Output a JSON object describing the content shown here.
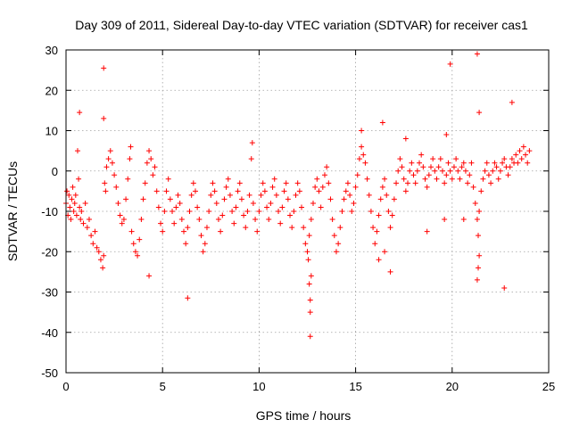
{
  "chart_data": {
    "type": "scatter",
    "title": "Day 309 of 2011, Sidereal Day-to-day VTEC variation (SDTVAR) for receiver cas1",
    "xlabel": "GPS time / hours",
    "ylabel": "SDTVAR / TECUs",
    "xlim": [
      0,
      25
    ],
    "ylim": [
      -50,
      30
    ],
    "xticks": [
      0,
      5,
      10,
      15,
      20,
      25
    ],
    "yticks": [
      -50,
      -40,
      -30,
      -20,
      -10,
      0,
      10,
      20,
      30
    ],
    "xtick_labels": [
      "0",
      "5",
      "10",
      "15",
      "20",
      "25"
    ],
    "ytick_labels": [
      "-50",
      "-40",
      "-30",
      "-20",
      "-10",
      "0",
      "10",
      "20",
      "30"
    ],
    "grid": true,
    "marker": "+",
    "color": "#ff0000",
    "series": [
      {
        "name": "cas1 SDTVAR",
        "points": [
          [
            0.0,
            -8
          ],
          [
            0.05,
            -5
          ],
          [
            0.1,
            -11
          ],
          [
            0.15,
            -6
          ],
          [
            0.2,
            -9
          ],
          [
            0.25,
            -12
          ],
          [
            0.3,
            -7
          ],
          [
            0.35,
            -4
          ],
          [
            0.4,
            -10
          ],
          [
            0.45,
            -8
          ],
          [
            0.5,
            -6
          ],
          [
            0.55,
            -11
          ],
          [
            0.6,
            5
          ],
          [
            0.65,
            -2
          ],
          [
            0.7,
            -9
          ],
          [
            0.75,
            -12
          ],
          [
            0.8,
            -10
          ],
          [
            0.9,
            -13
          ],
          [
            1.0,
            -8
          ],
          [
            1.1,
            -14
          ],
          [
            1.2,
            -12
          ],
          [
            1.3,
            -16
          ],
          [
            1.4,
            -18
          ],
          [
            1.5,
            -15
          ],
          [
            1.6,
            -19
          ],
          [
            1.7,
            -20
          ],
          [
            1.8,
            -22
          ],
          [
            1.9,
            -24
          ],
          [
            1.95,
            -21
          ],
          [
            2.0,
            -3
          ],
          [
            2.05,
            -5
          ],
          [
            2.1,
            1
          ],
          [
            2.2,
            3
          ],
          [
            2.3,
            5
          ],
          [
            2.4,
            2
          ],
          [
            2.5,
            -1
          ],
          [
            2.6,
            -4
          ],
          [
            2.7,
            -8
          ],
          [
            2.8,
            -11
          ],
          [
            2.9,
            -13
          ],
          [
            3.0,
            -12
          ],
          [
            3.1,
            -7
          ],
          [
            3.2,
            -2
          ],
          [
            3.3,
            3
          ],
          [
            3.35,
            6
          ],
          [
            3.4,
            -15
          ],
          [
            3.5,
            -18
          ],
          [
            3.6,
            -20
          ],
          [
            3.7,
            -21
          ],
          [
            3.8,
            -17
          ],
          [
            3.9,
            -12
          ],
          [
            4.0,
            -7
          ],
          [
            4.1,
            -3
          ],
          [
            4.2,
            2
          ],
          [
            4.3,
            5
          ],
          [
            4.4,
            3
          ],
          [
            4.5,
            -1
          ],
          [
            4.6,
            1
          ],
          [
            4.7,
            -5
          ],
          [
            4.8,
            -9
          ],
          [
            4.9,
            -13
          ],
          [
            5.0,
            -15
          ],
          [
            5.1,
            -10
          ],
          [
            5.2,
            -5
          ],
          [
            5.3,
            -2
          ],
          [
            5.4,
            -7
          ],
          [
            5.5,
            -10
          ],
          [
            5.6,
            -13
          ],
          [
            5.7,
            -9
          ],
          [
            5.8,
            -6
          ],
          [
            5.9,
            -8
          ],
          [
            6.0,
            -12
          ],
          [
            6.1,
            -15
          ],
          [
            6.2,
            -18
          ],
          [
            6.3,
            -14
          ],
          [
            6.4,
            -10
          ],
          [
            6.5,
            -6
          ],
          [
            6.6,
            -3
          ],
          [
            6.7,
            -5
          ],
          [
            6.8,
            -9
          ],
          [
            6.9,
            -12
          ],
          [
            7.0,
            -16
          ],
          [
            7.1,
            -20
          ],
          [
            7.2,
            -18
          ],
          [
            7.3,
            -14
          ],
          [
            7.4,
            -10
          ],
          [
            7.5,
            -6
          ],
          [
            7.6,
            -3
          ],
          [
            7.7,
            -5
          ],
          [
            7.8,
            -8
          ],
          [
            7.9,
            -12
          ],
          [
            8.0,
            -15
          ],
          [
            8.1,
            -11
          ],
          [
            8.2,
            -7
          ],
          [
            8.3,
            -4
          ],
          [
            8.4,
            -2
          ],
          [
            8.5,
            -6
          ],
          [
            8.6,
            -10
          ],
          [
            8.7,
            -13
          ],
          [
            8.8,
            -9
          ],
          [
            8.9,
            -5
          ],
          [
            9.0,
            -3
          ],
          [
            9.1,
            -7
          ],
          [
            9.2,
            -11
          ],
          [
            9.3,
            -14
          ],
          [
            9.4,
            -10
          ],
          [
            9.5,
            -6
          ],
          [
            9.6,
            3
          ],
          [
            9.65,
            7
          ],
          [
            9.7,
            -8
          ],
          [
            9.8,
            -12
          ],
          [
            9.9,
            -15
          ],
          [
            10.0,
            -10
          ],
          [
            10.1,
            -6
          ],
          [
            10.2,
            -3
          ],
          [
            10.3,
            -5
          ],
          [
            10.4,
            -9
          ],
          [
            10.5,
            -12
          ],
          [
            10.6,
            -8
          ],
          [
            10.7,
            -4
          ],
          [
            10.8,
            -2
          ],
          [
            10.9,
            -6
          ],
          [
            11.0,
            -10
          ],
          [
            11.1,
            -13
          ],
          [
            11.2,
            -9
          ],
          [
            11.3,
            -5
          ],
          [
            11.4,
            -3
          ],
          [
            11.5,
            -7
          ],
          [
            11.6,
            -11
          ],
          [
            11.7,
            -14
          ],
          [
            11.8,
            -10
          ],
          [
            11.9,
            -6
          ],
          [
            12.0,
            -3
          ],
          [
            12.1,
            -5
          ],
          [
            12.2,
            -9
          ],
          [
            12.3,
            -14
          ],
          [
            12.4,
            -18
          ],
          [
            12.5,
            -20
          ],
          [
            12.55,
            -22
          ],
          [
            12.6,
            -16
          ],
          [
            12.7,
            -12
          ],
          [
            12.8,
            -8
          ],
          [
            12.9,
            -4
          ],
          [
            13.0,
            -2
          ],
          [
            13.1,
            -5
          ],
          [
            13.2,
            -9
          ],
          [
            13.3,
            -4
          ],
          [
            13.4,
            -1
          ],
          [
            13.5,
            1
          ],
          [
            13.6,
            -3
          ],
          [
            13.7,
            -7
          ],
          [
            13.8,
            -12
          ],
          [
            13.9,
            -16
          ],
          [
            14.0,
            -20
          ],
          [
            14.1,
            -18
          ],
          [
            14.2,
            -14
          ],
          [
            14.3,
            -10
          ],
          [
            14.4,
            -7
          ],
          [
            14.5,
            -5
          ],
          [
            14.6,
            -3
          ],
          [
            14.7,
            -6
          ],
          [
            14.8,
            -10
          ],
          [
            14.9,
            -8
          ],
          [
            15.0,
            -4
          ],
          [
            15.1,
            -1
          ],
          [
            15.2,
            3
          ],
          [
            15.3,
            6
          ],
          [
            15.4,
            4
          ],
          [
            15.5,
            2
          ],
          [
            15.6,
            -2
          ],
          [
            15.7,
            -6
          ],
          [
            15.8,
            -10
          ],
          [
            15.9,
            -14
          ],
          [
            16.0,
            -18
          ],
          [
            16.1,
            -15
          ],
          [
            16.2,
            -11
          ],
          [
            16.3,
            -7
          ],
          [
            16.4,
            -4
          ],
          [
            16.5,
            -2
          ],
          [
            16.6,
            -6
          ],
          [
            16.7,
            -10
          ],
          [
            16.8,
            -14
          ],
          [
            16.9,
            -11
          ],
          [
            17.0,
            -7
          ],
          [
            17.1,
            -3
          ],
          [
            17.2,
            0
          ],
          [
            17.3,
            3
          ],
          [
            17.4,
            1
          ],
          [
            17.5,
            -2
          ],
          [
            17.6,
            -5
          ],
          [
            17.7,
            -3
          ],
          [
            17.8,
            0
          ],
          [
            17.9,
            2
          ],
          [
            18.0,
            -1
          ],
          [
            18.1,
            -3
          ],
          [
            18.2,
            0
          ],
          [
            18.3,
            2
          ],
          [
            18.4,
            4
          ],
          [
            18.5,
            1
          ],
          [
            18.6,
            -2
          ],
          [
            18.7,
            -4
          ],
          [
            18.8,
            -1
          ],
          [
            18.9,
            1
          ],
          [
            19.0,
            3
          ],
          [
            19.1,
            0
          ],
          [
            19.2,
            -2
          ],
          [
            19.3,
            1
          ],
          [
            19.4,
            3
          ],
          [
            19.5,
            0
          ],
          [
            19.6,
            -3
          ],
          [
            19.7,
            -1
          ],
          [
            19.8,
            2
          ],
          [
            19.9,
            0
          ],
          [
            20.0,
            -2
          ],
          [
            20.1,
            1
          ],
          [
            20.2,
            3
          ],
          [
            20.3,
            0
          ],
          [
            20.4,
            -2
          ],
          [
            20.5,
            1
          ],
          [
            20.6,
            2
          ],
          [
            20.7,
            0
          ],
          [
            20.8,
            -3
          ],
          [
            20.9,
            -1
          ],
          [
            21.0,
            2
          ],
          [
            21.1,
            -4
          ],
          [
            21.2,
            -8
          ],
          [
            21.3,
            -12
          ],
          [
            21.35,
            -16
          ],
          [
            21.4,
            -10
          ],
          [
            21.5,
            -5
          ],
          [
            21.6,
            -2
          ],
          [
            21.7,
            0
          ],
          [
            21.8,
            2
          ],
          [
            21.9,
            -1
          ],
          [
            22.0,
            -3
          ],
          [
            22.1,
            0
          ],
          [
            22.2,
            2
          ],
          [
            22.3,
            1
          ],
          [
            22.4,
            -2
          ],
          [
            22.5,
            0
          ],
          [
            22.6,
            2
          ],
          [
            22.7,
            3
          ],
          [
            22.8,
            1
          ],
          [
            22.9,
            -1
          ],
          [
            23.0,
            1
          ],
          [
            23.1,
            3
          ],
          [
            23.2,
            2
          ],
          [
            23.3,
            4
          ],
          [
            23.4,
            2
          ],
          [
            23.5,
            5
          ],
          [
            23.6,
            3
          ],
          [
            23.7,
            6
          ],
          [
            23.8,
            4
          ],
          [
            23.9,
            2
          ],
          [
            24.0,
            5
          ],
          [
            0.7,
            14.5
          ],
          [
            1.95,
            25.5
          ],
          [
            1.95,
            13
          ],
          [
            4.3,
            -26
          ],
          [
            6.3,
            -31.5
          ],
          [
            12.65,
            -32
          ],
          [
            12.65,
            -35
          ],
          [
            12.65,
            -41
          ],
          [
            12.6,
            -28
          ],
          [
            12.7,
            -26
          ],
          [
            15.3,
            10
          ],
          [
            16.4,
            12
          ],
          [
            16.5,
            -20
          ],
          [
            16.8,
            -25
          ],
          [
            17.6,
            8
          ],
          [
            19.7,
            9
          ],
          [
            19.9,
            26.5
          ],
          [
            21.3,
            29
          ],
          [
            21.4,
            14.5
          ],
          [
            21.4,
            -21
          ],
          [
            21.35,
            -24
          ],
          [
            21.3,
            -27
          ],
          [
            22.7,
            -29
          ],
          [
            23.1,
            17
          ],
          [
            20.6,
            -12
          ],
          [
            19.6,
            -12
          ],
          [
            18.7,
            -15
          ],
          [
            16.2,
            -22
          ]
        ]
      }
    ]
  }
}
